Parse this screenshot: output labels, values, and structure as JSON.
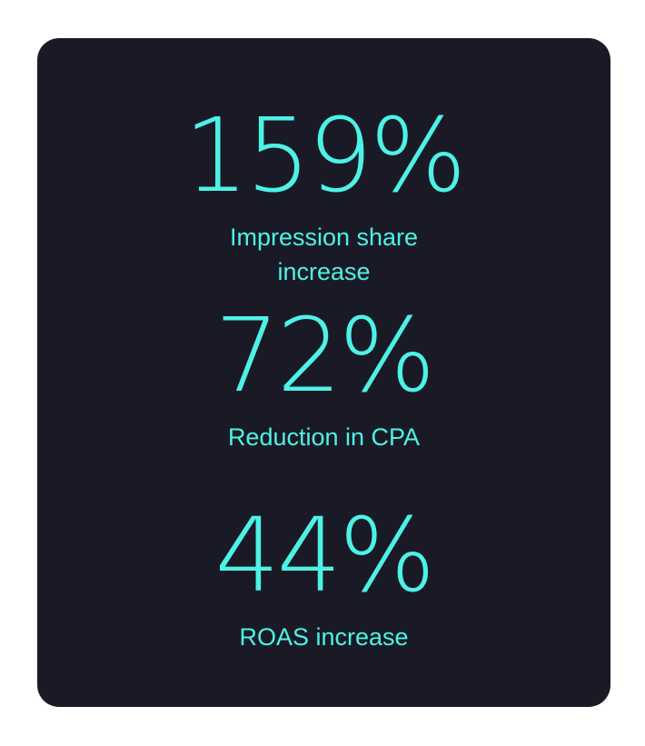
{
  "stats": [
    {
      "value": "159%",
      "label": "Impression share increase"
    },
    {
      "value": "72%",
      "label": "Reduction in CPA"
    },
    {
      "value": "44%",
      "label": "ROAS increase"
    }
  ],
  "colors": {
    "card_background": "#1a1a26",
    "accent": "#4df2e6",
    "page_background": "#ffffff"
  }
}
